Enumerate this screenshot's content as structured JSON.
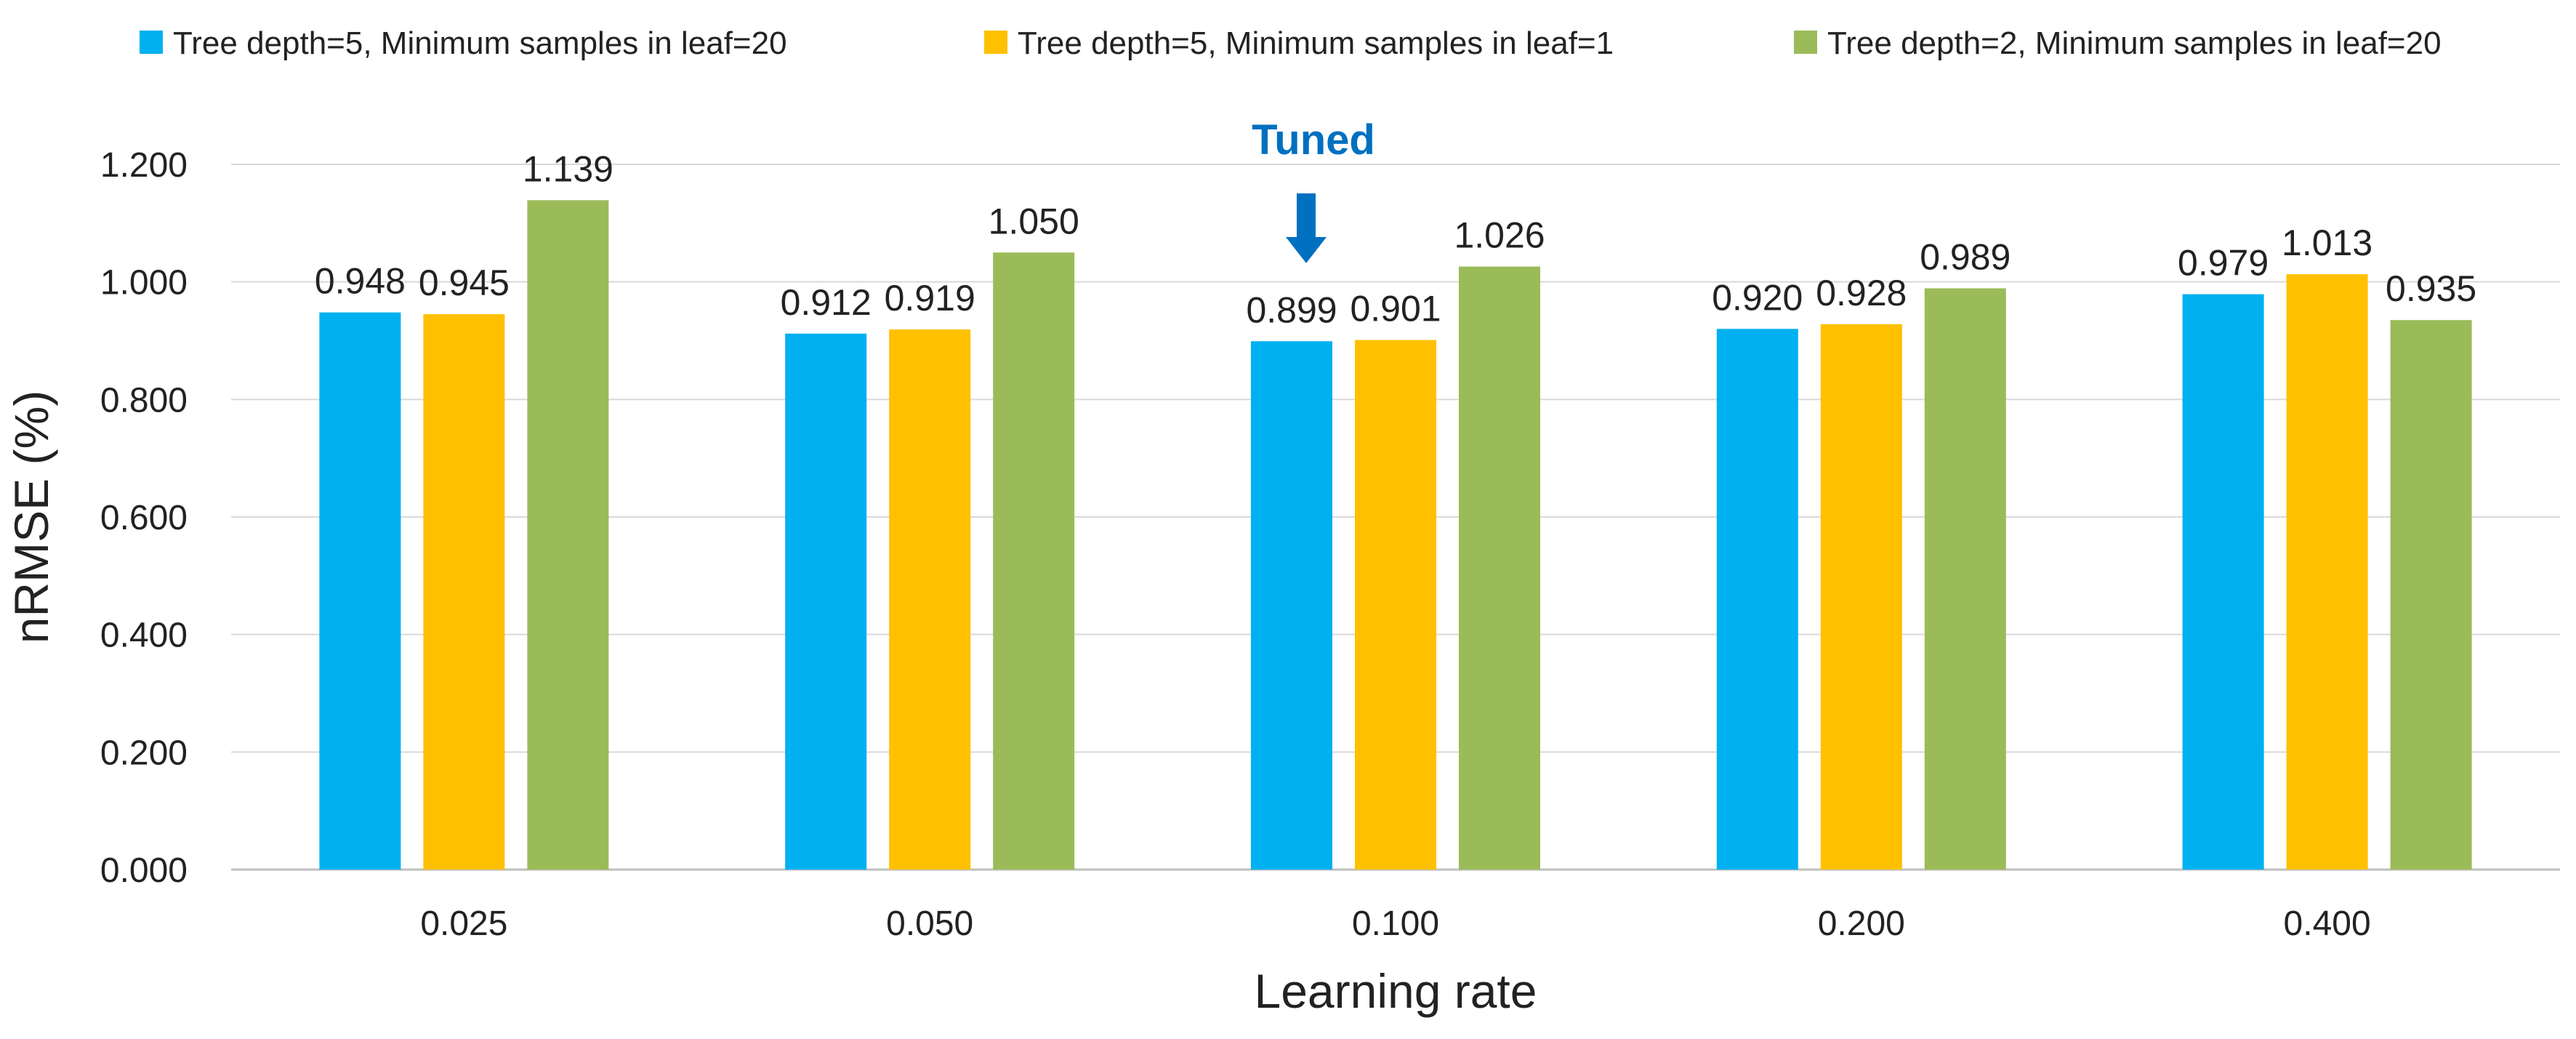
{
  "chart_data": {
    "type": "bar",
    "title": "",
    "xlabel": "Learning rate",
    "ylabel": "nRMSE (%)",
    "ylim": [
      0,
      1.2
    ],
    "ytick_step": 0.2,
    "y_tick_labels": [
      "0.000",
      "0.200",
      "0.400",
      "0.600",
      "0.800",
      "1.000",
      "1.200"
    ],
    "grid": true,
    "legend_position": "top",
    "categories": [
      "0.025",
      "0.050",
      "0.100",
      "0.200",
      "0.400"
    ],
    "series": [
      {
        "name": "Tree depth=5, Minimum samples in leaf=20",
        "color": "#00b0f0",
        "values": [
          0.948,
          0.912,
          0.899,
          0.92,
          0.979
        ],
        "labels": [
          "0.948",
          "0.912",
          "0.899",
          "0.920",
          "0.979"
        ]
      },
      {
        "name": "Tree depth=5, Minimum samples in leaf=1",
        "color": "#ffc000",
        "values": [
          0.945,
          0.919,
          0.901,
          0.928,
          1.013
        ],
        "labels": [
          "0.945",
          "0.919",
          "0.901",
          "0.928",
          "1.013"
        ]
      },
      {
        "name": "Tree depth=2, Minimum samples in leaf=20",
        "color": "#9bbb59",
        "values": [
          1.139,
          1.05,
          1.026,
          0.989,
          0.935
        ],
        "labels": [
          "1.139",
          "1.050",
          "1.026",
          "0.989",
          "0.935"
        ]
      }
    ],
    "annotations": [
      {
        "text": "Tuned",
        "color": "#0070c0",
        "arrow_icon": "down-arrow-icon",
        "category_index": 2,
        "series_index": 0
      }
    ]
  }
}
